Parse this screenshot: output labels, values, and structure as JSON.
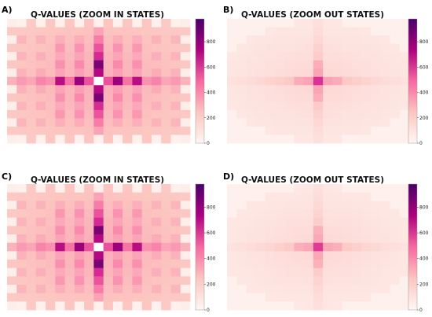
{
  "chart_data": [
    {
      "panel": "A)",
      "type": "heatmap",
      "title": "Q-VALUES (ZOOM IN STATES)",
      "xlabel": "",
      "ylabel": "",
      "grid": {
        "rows": 15,
        "cols": 19,
        "center_row": 7,
        "center_col": 9
      },
      "values_note_free": true,
      "peak_value": 980,
      "colorbar": {
        "ticks": [
          0,
          200,
          400,
          600,
          800
        ],
        "range": [
          0,
          980
        ],
        "colormap": "RdPu"
      }
    },
    {
      "panel": "B)",
      "type": "heatmap",
      "title": "Q-VALUES (ZOOM OUT STATES)",
      "xlabel": "",
      "ylabel": "",
      "grid": {
        "rows": 15,
        "cols": 19,
        "center_row": 7,
        "center_col": 9
      },
      "peak_value": 560,
      "colorbar": {
        "ticks": [
          0,
          200,
          400,
          600,
          800
        ],
        "range": [
          0,
          980
        ],
        "colormap": "RdPu"
      }
    },
    {
      "panel": "C)",
      "type": "heatmap",
      "title": "Q-VALUES (ZOOM IN STATES)",
      "xlabel": "",
      "ylabel": "",
      "grid": {
        "rows": 15,
        "cols": 19,
        "center_row": 7,
        "center_col": 9
      },
      "peak_value": 980,
      "colorbar": {
        "ticks": [
          0,
          200,
          400,
          600,
          800
        ],
        "range": [
          0,
          980
        ],
        "colormap": "RdPu"
      }
    },
    {
      "panel": "D)",
      "type": "heatmap",
      "title": "Q-VALUES (ZOOM OUT STATES)",
      "xlabel": "",
      "ylabel": "",
      "grid": {
        "rows": 15,
        "cols": 19,
        "center_row": 7,
        "center_col": 9
      },
      "peak_value": 540,
      "colorbar": {
        "ticks": [
          0,
          200,
          400,
          600,
          800
        ],
        "range": [
          0,
          980
        ],
        "colormap": "RdPu"
      }
    }
  ]
}
